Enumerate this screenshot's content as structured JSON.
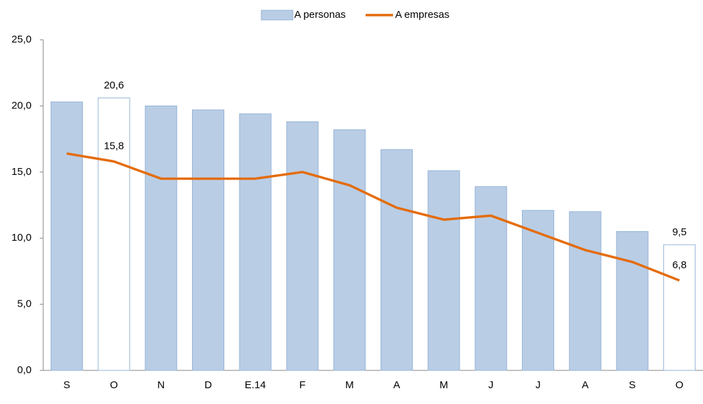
{
  "chart_data": {
    "type": "bar-line",
    "categories": [
      "S",
      "O",
      "N",
      "D",
      "E.14",
      "F",
      "M",
      "A",
      "M",
      "J",
      "J",
      "A",
      "S",
      "O"
    ],
    "series": [
      {
        "name": "A personas",
        "type": "bar",
        "color": "#b9cde5",
        "stroke": "#95b3d7",
        "values": [
          20.3,
          20.6,
          20.0,
          19.7,
          19.4,
          18.8,
          18.2,
          16.7,
          15.1,
          13.9,
          12.1,
          12.0,
          10.5,
          9.5
        ],
        "value_labels": [
          null,
          "20,6",
          null,
          null,
          null,
          null,
          null,
          null,
          null,
          null,
          null,
          null,
          null,
          "9,5"
        ]
      },
      {
        "name": "A empresas",
        "type": "line",
        "color": "#e46c0a",
        "values": [
          16.4,
          15.8,
          14.5,
          14.5,
          14.5,
          15.0,
          14.0,
          12.3,
          11.4,
          11.7,
          10.4,
          9.1,
          8.2,
          6.8
        ],
        "value_labels": [
          null,
          "15,8",
          null,
          null,
          null,
          null,
          null,
          null,
          null,
          null,
          null,
          null,
          null,
          "6,8"
        ]
      }
    ],
    "ylim": [
      0,
      25
    ],
    "yticks": [
      {
        "value": 0,
        "label": "0,0"
      },
      {
        "value": 5,
        "label": "5,0"
      },
      {
        "value": 10,
        "label": "10,0"
      },
      {
        "value": 15,
        "label": "15,0"
      },
      {
        "value": 20,
        "label": "20,0"
      },
      {
        "value": 25,
        "label": "25,0"
      }
    ],
    "legend": "top"
  }
}
